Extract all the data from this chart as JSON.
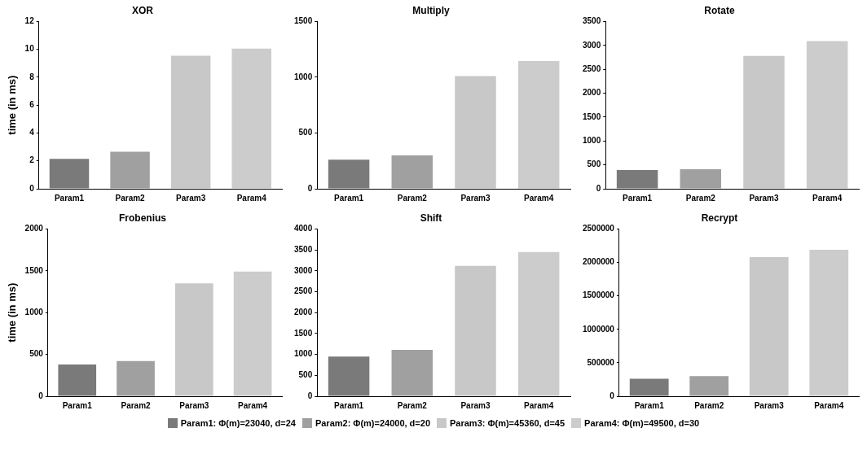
{
  "chart_data": [
    {
      "type": "bar",
      "title": "XOR",
      "ylabel": "time (in ms)",
      "categories": [
        "Param1",
        "Param2",
        "Param3",
        "Param4"
      ],
      "values": [
        2.15,
        2.65,
        9.55,
        10.05
      ],
      "colors": [
        "#7a7a7a",
        "#a0a0a0",
        "#c8c8c8",
        "#cccccc"
      ],
      "ylim": [
        0,
        12
      ],
      "yticks": [
        0,
        2,
        4,
        6,
        8,
        10,
        12
      ],
      "grid": false
    },
    {
      "type": "bar",
      "title": "Multiply",
      "categories": [
        "Param1",
        "Param2",
        "Param3",
        "Param4"
      ],
      "values": [
        260,
        300,
        1010,
        1145
      ],
      "colors": [
        "#7a7a7a",
        "#a0a0a0",
        "#c8c8c8",
        "#cccccc"
      ],
      "ylim": [
        0,
        1500
      ],
      "yticks": [
        0,
        500,
        1000,
        1500
      ],
      "grid": false
    },
    {
      "type": "bar",
      "title": "Rotate",
      "categories": [
        "Param1",
        "Param2",
        "Param3",
        "Param4"
      ],
      "values": [
        390,
        410,
        2780,
        3090
      ],
      "colors": [
        "#7a7a7a",
        "#a0a0a0",
        "#c8c8c8",
        "#cccccc"
      ],
      "ylim": [
        0,
        3500
      ],
      "yticks": [
        0,
        500,
        1000,
        1500,
        2000,
        2500,
        3000,
        3500
      ],
      "grid": false
    },
    {
      "type": "bar",
      "title": "Frobenius",
      "ylabel": "time (in ms)",
      "categories": [
        "Param1",
        "Param2",
        "Param3",
        "Param4"
      ],
      "values": [
        380,
        420,
        1350,
        1490
      ],
      "colors": [
        "#7a7a7a",
        "#a0a0a0",
        "#c8c8c8",
        "#cccccc"
      ],
      "ylim": [
        0,
        2000
      ],
      "yticks": [
        0,
        500,
        1000,
        1500,
        2000
      ],
      "grid": false
    },
    {
      "type": "bar",
      "title": "Shift",
      "categories": [
        "Param1",
        "Param2",
        "Param3",
        "Param4"
      ],
      "values": [
        950,
        1110,
        3120,
        3450
      ],
      "colors": [
        "#7a7a7a",
        "#a0a0a0",
        "#c8c8c8",
        "#cccccc"
      ],
      "ylim": [
        0,
        4000
      ],
      "yticks": [
        0,
        500,
        1000,
        1500,
        2000,
        2500,
        3000,
        3500,
        4000
      ],
      "grid": false
    },
    {
      "type": "bar",
      "title": "Recrypt",
      "categories": [
        "Param1",
        "Param2",
        "Param3",
        "Param4"
      ],
      "series": [
        {
          "name": "Param1: Φ(m)=23040, d=24",
          "color": "#7a7a7a",
          "values": [
            260000,
            null,
            null,
            null
          ]
        },
        {
          "name": "Param2: Φ(m)=24000, d=20",
          "color": "#a0a0a0",
          "values": [
            null,
            300000,
            null,
            null
          ]
        },
        {
          "name": "Param3: Φ(m)=45360, d=45",
          "color": "#c8c8c8",
          "values": [
            null,
            null,
            2080000,
            null
          ]
        },
        {
          "name": "Param4: Φ(m)=49500, d=30",
          "color": "#cccccc",
          "values": [
            null,
            null,
            null,
            2190000
          ]
        }
      ],
      "ylim": [
        0,
        2500000
      ],
      "yticks": [
        0,
        500000,
        1000000,
        1500000,
        2000000,
        2500000
      ],
      "grid": false,
      "legend": "bottom"
    }
  ]
}
